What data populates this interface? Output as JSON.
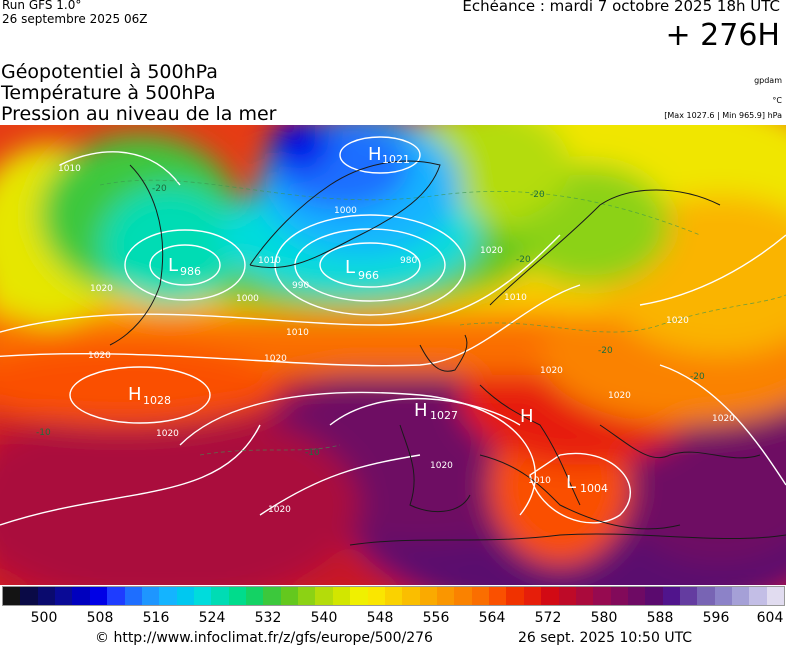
{
  "header": {
    "run": "Run GFS 1.0°",
    "run_date": "26 septembre 2025 06Z",
    "forecast_time": "Echéance : mardi 7 octobre 2025 18h UTC",
    "offset": "+ 276H"
  },
  "titles": [
    "Géopotentiel à 500hPa",
    "Température à 500hPa",
    "Pression au niveau de la mer"
  ],
  "units": {
    "geopotential": "gpdam",
    "temperature": "°C",
    "pressure_range": "[Max 1027.6 | Min 965.9] hPa"
  },
  "map": {
    "pressure_centers": [
      {
        "type": "H",
        "value": "1021"
      },
      {
        "type": "L",
        "value": "966"
      },
      {
        "type": "L",
        "value": "986"
      },
      {
        "type": "H",
        "value": "1028"
      },
      {
        "type": "H",
        "value": "1027"
      },
      {
        "type": "H",
        "value": ""
      },
      {
        "type": "L",
        "value": "1004"
      }
    ],
    "isobar_labels": [
      "1010",
      "1020",
      "1000",
      "1000",
      "990",
      "980",
      "1010",
      "1020",
      "1010",
      "1020",
      "1020",
      "1020",
      "1020",
      "1020",
      "1020",
      "1010",
      "1020",
      "1020",
      "1020",
      "1010"
    ],
    "isotherm_labels": [
      "-20",
      "-20",
      "-10",
      "-20",
      "-20",
      "-10",
      "-20"
    ]
  },
  "colorbar": {
    "colors": [
      "#141414",
      "#0a0a46",
      "#0a0a6e",
      "#0a0a96",
      "#0000be",
      "#0000e6",
      "#1e3cff",
      "#1e6eff",
      "#1e96ff",
      "#14b4ff",
      "#00c8f0",
      "#00dcdc",
      "#00dcb4",
      "#00dc8c",
      "#14d264",
      "#3cc83c",
      "#64c81e",
      "#8cd214",
      "#b4dc0a",
      "#d2e600",
      "#f0f000",
      "#fae600",
      "#fad200",
      "#fabe00",
      "#faaa00",
      "#fa9600",
      "#fa8200",
      "#fa6e00",
      "#fa5000",
      "#f03200",
      "#e61e0a",
      "#d20a14",
      "#be0a28",
      "#aa0a3c",
      "#960a50",
      "#820a5a",
      "#6e0a64",
      "#5a0a6e",
      "#50148c",
      "#643ca0",
      "#7864b4",
      "#8c82c8",
      "#a5a0d7",
      "#c3bee6",
      "#e1dcf0"
    ],
    "labels": [
      "500",
      "508",
      "516",
      "524",
      "532",
      "540",
      "548",
      "556",
      "564",
      "572",
      "580",
      "588",
      "596",
      "604"
    ]
  },
  "footer": {
    "copyright": "© http://www.infoclimat.fr/z/gfs/europe/500/276",
    "generated": "26 sept. 2025 10:50 UTC"
  }
}
